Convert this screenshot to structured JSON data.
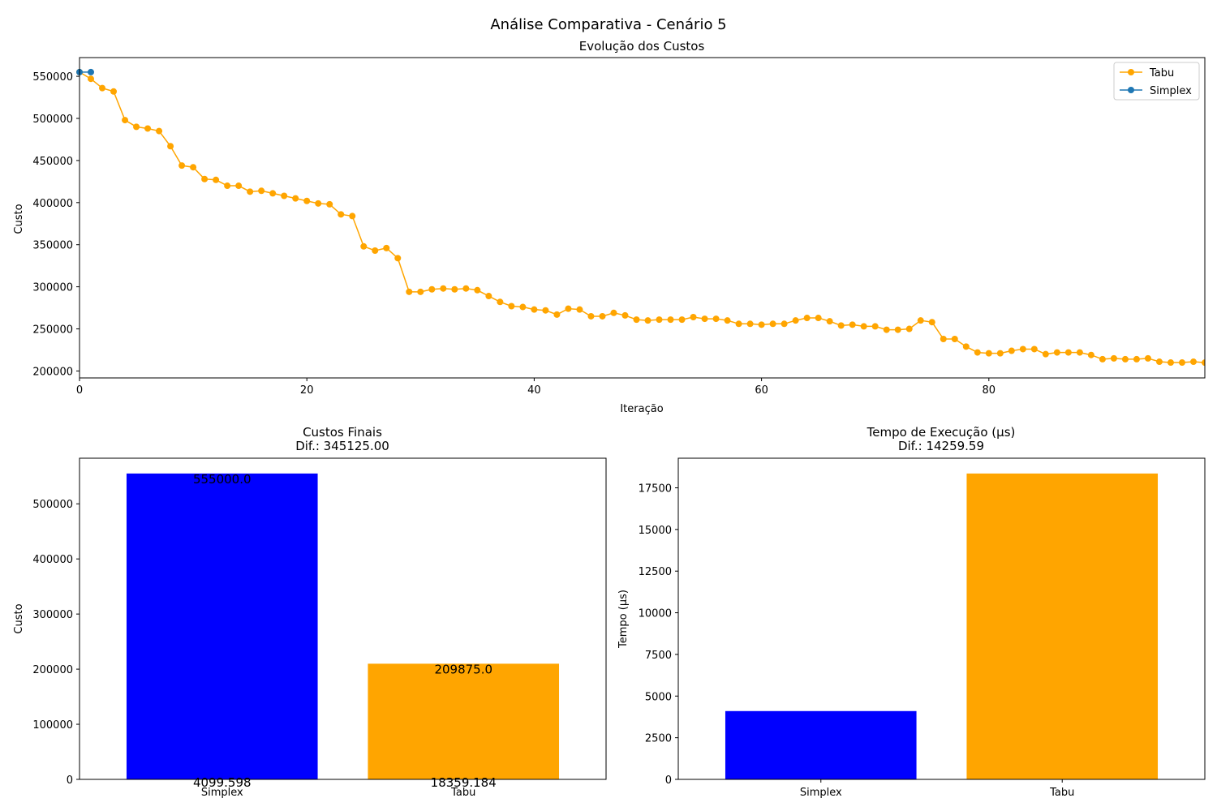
{
  "figure": {
    "suptitle": "Análise Comparativa - Cenário 5",
    "colors": {
      "simplex": "#0000ff",
      "tabu": "#ffa500",
      "simplex_line": "#1f77b4"
    }
  },
  "chart_data": [
    {
      "type": "line",
      "title": "Evolução dos Custos",
      "xlabel": "Iteração",
      "ylabel": "Custo",
      "xlim": [
        0,
        99
      ],
      "ylim": [
        191750,
        572250
      ],
      "x_ticks": [
        0,
        20,
        40,
        60,
        80
      ],
      "y_ticks": [
        200000,
        250000,
        300000,
        350000,
        400000,
        450000,
        500000,
        550000
      ],
      "legend": {
        "placement": "top-right",
        "entries": [
          "Tabu",
          "Simplex"
        ]
      },
      "grid": false,
      "series": [
        {
          "name": "Tabu",
          "color": "#ffa500",
          "marker": "circle",
          "x": [
            0,
            1,
            2,
            3,
            4,
            5,
            6,
            7,
            8,
            9,
            10,
            11,
            12,
            13,
            14,
            15,
            16,
            17,
            18,
            19,
            20,
            21,
            22,
            23,
            24,
            25,
            26,
            27,
            28,
            29,
            30,
            31,
            32,
            33,
            34,
            35,
            36,
            37,
            38,
            39,
            40,
            41,
            42,
            43,
            44,
            45,
            46,
            47,
            48,
            49,
            50,
            51,
            52,
            53,
            54,
            55,
            56,
            57,
            58,
            59,
            60,
            61,
            62,
            63,
            64,
            65,
            66,
            67,
            68,
            69,
            70,
            71,
            72,
            73,
            74,
            75,
            76,
            77,
            78,
            79,
            80,
            81,
            82,
            83,
            84,
            85,
            86,
            87,
            88,
            89,
            90,
            91,
            92,
            93,
            94,
            95,
            96,
            97,
            98,
            99
          ],
          "values": [
            555000,
            547000,
            536000,
            532000,
            498000,
            490000,
            488000,
            485000,
            467000,
            444000,
            442000,
            428000,
            427000,
            420000,
            420000,
            413000,
            414000,
            411000,
            408000,
            405000,
            402000,
            399000,
            398000,
            386000,
            384000,
            348000,
            343000,
            346000,
            334000,
            294000,
            294000,
            297000,
            298000,
            297000,
            298000,
            296000,
            289000,
            282000,
            277000,
            276000,
            273000,
            272000,
            267000,
            274000,
            273000,
            265000,
            265000,
            269000,
            266000,
            261000,
            260000,
            261000,
            261000,
            261000,
            264000,
            262000,
            262000,
            260000,
            256000,
            256000,
            255000,
            256000,
            256000,
            260000,
            263000,
            263000,
            259000,
            254000,
            255000,
            253000,
            253000,
            249000,
            249000,
            250000,
            260000,
            258000,
            238000,
            238000,
            229000,
            222000,
            221000,
            221000,
            224000,
            226000,
            226000,
            220000,
            222000,
            222000,
            222000,
            219000,
            214000,
            215000,
            214000,
            214000,
            215000,
            211000,
            210000,
            210000,
            211000,
            209875
          ]
        },
        {
          "name": "Simplex",
          "color": "#1f77b4",
          "marker": "circle",
          "x": [
            0,
            1
          ],
          "values": [
            555000,
            555000
          ]
        }
      ]
    },
    {
      "type": "bar",
      "title": "Custos Finais",
      "subtitle": "Dif.: 345125.00",
      "xlabel": "",
      "ylabel": "Custo",
      "categories": [
        "Simplex",
        "Tabu"
      ],
      "values": [
        555000,
        209875
      ],
      "colors": [
        "#0000ff",
        "#ffa500"
      ],
      "value_labels": [
        "555000.0",
        "209875.0"
      ],
      "time_labels": [
        "4099.598",
        "18359.184"
      ],
      "ylim": [
        0,
        582750
      ],
      "y_ticks": [
        0,
        100000,
        200000,
        300000,
        400000,
        500000
      ]
    },
    {
      "type": "bar",
      "title": "Tempo de Execução (µs)",
      "subtitle": "Dif.: 14259.59",
      "xlabel": "",
      "ylabel": "Tempo (µs)",
      "categories": [
        "Simplex",
        "Tabu"
      ],
      "values": [
        4099.598,
        18359.184
      ],
      "colors": [
        "#0000ff",
        "#ffa500"
      ],
      "ylim": [
        0,
        19277.14
      ],
      "y_ticks": [
        0,
        2500,
        5000,
        7500,
        10000,
        12500,
        15000,
        17500
      ]
    }
  ]
}
